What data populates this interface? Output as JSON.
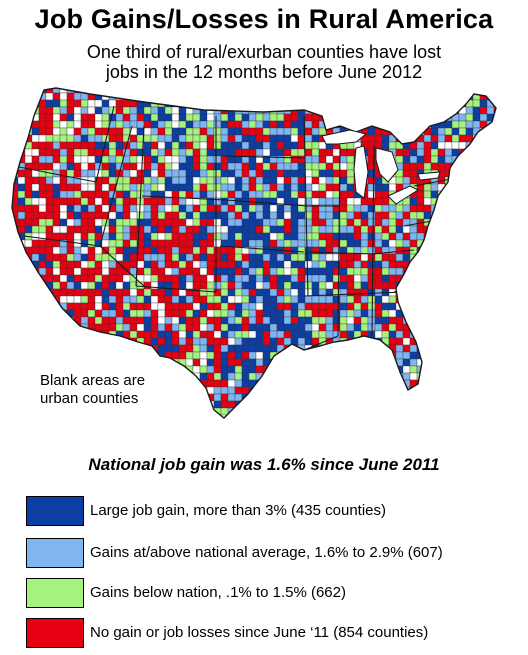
{
  "title": "Job Gains/Losses in Rural America",
  "subtitle": {
    "line1": "One third of rural/exurban counties have lost",
    "line2": "jobs in the 12 months before June 2012"
  },
  "map_note": {
    "line1": "Blank areas are",
    "line2": "urban counties"
  },
  "headline": "National job gain was 1.6% since June 2011",
  "legend": [
    {
      "label": "Large job gain, more than 3% (435 counties)",
      "color": "#0b3fa6"
    },
    {
      "label": "Gains at/above national average, 1.6% to 2.9% (607)",
      "color": "#7fb6f2"
    },
    {
      "label": "Gains below nation, .1% to 1.5% (662)",
      "color": "#a6f27f"
    },
    {
      "label": "No gain or job losses since June ‘11 (854 counties)",
      "color": "#e60012"
    }
  ],
  "colors": {
    "large_gain": "#0b3fa6",
    "above_average": "#7fb6f2",
    "below_nation": "#a6f27f",
    "loss": "#e60012",
    "urban_blank": "#ffffff",
    "border": "#1a1a1a"
  }
}
